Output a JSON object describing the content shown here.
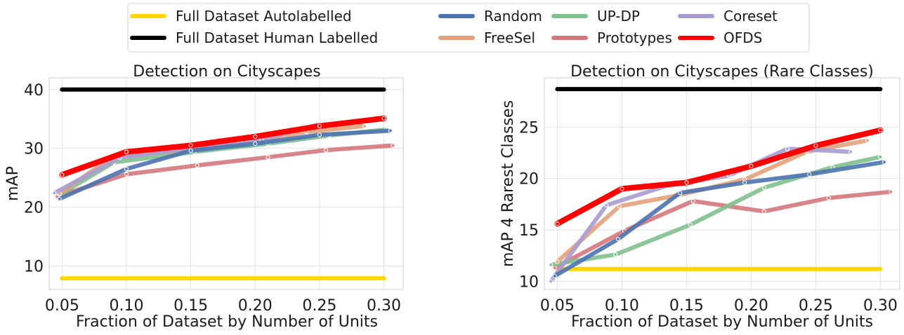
{
  "legend": [
    {
      "label": "Full Dataset Autolabelled",
      "color": "#FFD700"
    },
    {
      "label": "Full Dataset Human Labelled",
      "color": "#000000"
    },
    {
      "label": "Random",
      "color": "#4C72B0"
    },
    {
      "label": "FreeSel",
      "color": "#E5A07A"
    },
    {
      "label": "UP-DP",
      "color": "#7EC08E"
    },
    {
      "label": "Prototypes",
      "color": "#D4777C"
    },
    {
      "label": "Coreset",
      "color": "#A99BD2"
    },
    {
      "label": "OFDS",
      "color": "#FF0000"
    }
  ],
  "chart_data": [
    {
      "type": "line",
      "title": "Detection on Cityscapes",
      "xlabel": "Fraction of Dataset by Number of Units",
      "ylabel": "mAP",
      "xlim": [
        0.04,
        0.315
      ],
      "ylim": [
        6,
        42
      ],
      "xticks": [
        0.05,
        0.1,
        0.15,
        0.2,
        0.25,
        0.3
      ],
      "xtick_labels": [
        "0.05",
        "0.10",
        "0.15",
        "0.20",
        "0.25",
        "0.30"
      ],
      "yticks": [
        10,
        20,
        30,
        40
      ],
      "ytick_labels": [
        "10",
        "20",
        "30",
        "40"
      ],
      "grid": true,
      "series": [
        {
          "name": "Full Dataset Autolabelled",
          "color": "#FFD700",
          "x": [
            0.05,
            0.3
          ],
          "y": [
            7.9,
            7.9
          ],
          "markers": false
        },
        {
          "name": "Full Dataset Human Labelled",
          "color": "#000000",
          "x": [
            0.05,
            0.3
          ],
          "y": [
            40.0,
            40.0
          ],
          "markers": false
        },
        {
          "name": "Prototypes",
          "color": "#D4777C",
          "x": [
            0.046,
            0.1,
            0.155,
            0.21,
            0.255,
            0.307
          ],
          "y": [
            21.8,
            25.6,
            27.1,
            28.5,
            29.7,
            30.5
          ]
        },
        {
          "name": "UP-DP",
          "color": "#7EC08E",
          "x": [
            0.048,
            0.09,
            0.153,
            0.21,
            0.258,
            0.302
          ],
          "y": [
            22.1,
            27.6,
            29.4,
            30.8,
            32.2,
            33.2
          ]
        },
        {
          "name": "FreeSel",
          "color": "#E5A07A",
          "x": [
            0.048,
            0.09,
            0.15,
            0.195,
            0.24,
            0.285
          ],
          "y": [
            22.3,
            28.7,
            29.8,
            31.1,
            32.8,
            33.8
          ]
        },
        {
          "name": "Coreset",
          "color": "#A99BD2",
          "x": [
            0.044,
            0.095,
            0.155,
            0.205,
            0.25
          ],
          "y": [
            22.4,
            28.4,
            30.2,
            31.5,
            34.1
          ]
        },
        {
          "name": "Random",
          "color": "#4C72B0",
          "x": [
            0.048,
            0.1,
            0.15,
            0.2,
            0.25,
            0.305
          ],
          "y": [
            21.4,
            26.5,
            29.6,
            30.8,
            32.3,
            33.0
          ]
        },
        {
          "name": "OFDS",
          "color": "#FF0000",
          "x": [
            0.05,
            0.1,
            0.15,
            0.2,
            0.25,
            0.3
          ],
          "y": [
            25.5,
            29.4,
            30.5,
            32.0,
            33.8,
            35.1
          ]
        }
      ]
    },
    {
      "type": "line",
      "title": "Detection on Cityscapes (Rare Classes)",
      "xlabel": "Fraction of Dataset by Number of Units",
      "ylabel": "mAP 4 Rarest Classes",
      "xlim": [
        0.04,
        0.315
      ],
      "ylim": [
        9.2,
        29.8
      ],
      "xticks": [
        0.05,
        0.1,
        0.15,
        0.2,
        0.25,
        0.3
      ],
      "xtick_labels": [
        "0.05",
        "0.10",
        "0.15",
        "0.20",
        "0.25",
        "0.30"
      ],
      "yticks": [
        10,
        15,
        20,
        25
      ],
      "ytick_labels": [
        "10",
        "15",
        "20",
        "25"
      ],
      "grid": true,
      "series": [
        {
          "name": "Full Dataset Autolabelled",
          "color": "#FFD700",
          "x": [
            0.05,
            0.3
          ],
          "y": [
            11.2,
            11.2
          ],
          "markers": false
        },
        {
          "name": "Full Dataset Human Labelled",
          "color": "#000000",
          "x": [
            0.05,
            0.3
          ],
          "y": [
            28.7,
            28.7
          ],
          "markers": false
        },
        {
          "name": "Prototypes",
          "color": "#D4777C",
          "x": [
            0.048,
            0.102,
            0.155,
            0.21,
            0.26,
            0.308
          ],
          "y": [
            11.3,
            14.9,
            17.8,
            16.8,
            18.1,
            18.7
          ]
        },
        {
          "name": "UP-DP",
          "color": "#7EC08E",
          "x": [
            0.045,
            0.095,
            0.153,
            0.21,
            0.263,
            0.3
          ],
          "y": [
            11.6,
            12.6,
            15.5,
            19.1,
            21.1,
            22.1
          ]
        },
        {
          "name": "FreeSel",
          "color": "#E5A07A",
          "x": [
            0.05,
            0.098,
            0.145,
            0.195,
            0.243,
            0.29
          ],
          "y": [
            11.9,
            17.3,
            18.4,
            19.9,
            22.6,
            23.7
          ]
        },
        {
          "name": "Coreset",
          "color": "#A99BD2",
          "x": [
            0.045,
            0.088,
            0.135,
            0.183,
            0.228,
            0.277
          ],
          "y": [
            10.0,
            17.4,
            19.3,
            20.3,
            22.9,
            22.6
          ]
        },
        {
          "name": "Random",
          "color": "#4C72B0",
          "x": [
            0.048,
            0.097,
            0.145,
            0.195,
            0.245,
            0.303
          ],
          "y": [
            10.5,
            14.1,
            18.6,
            19.6,
            20.4,
            21.6
          ]
        },
        {
          "name": "OFDS",
          "color": "#FF0000",
          "x": [
            0.05,
            0.1,
            0.15,
            0.2,
            0.25,
            0.3
          ],
          "y": [
            15.6,
            19.0,
            19.6,
            21.2,
            23.2,
            24.7
          ]
        }
      ]
    }
  ]
}
